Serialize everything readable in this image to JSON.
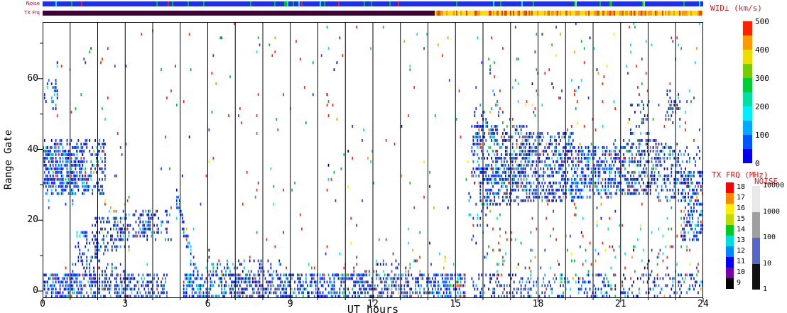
{
  "figure": {
    "strip_labels": {
      "noise": "Noise",
      "txfrq": "TX Frq"
    },
    "axes": {
      "xlabel": "UT hours",
      "ylabel": "Range Gate",
      "xticks": [
        0,
        3,
        6,
        9,
        12,
        15,
        18,
        21,
        24
      ],
      "yticks": [
        0,
        20,
        40,
        60
      ],
      "xlim": [
        0,
        24
      ],
      "ylim": [
        -2,
        76
      ],
      "hour_gridlines": true
    },
    "colorbars": {
      "wid": {
        "title": "WID⊥ (km/s)",
        "tick_values": [
          0,
          100,
          200,
          300,
          400,
          500
        ],
        "max": 500,
        "colors_bottom_to_top": [
          "#0000ee",
          "#0055ff",
          "#00aaff",
          "#00eeff",
          "#00e0a0",
          "#00cc33",
          "#77cc00",
          "#eedd00",
          "#ff9900",
          "#ff2200"
        ]
      },
      "txfrq": {
        "title": "TX FRQ (MHz)",
        "labels_top_to_bottom": [
          "18",
          "17",
          "16",
          "15",
          "14",
          "13",
          "12",
          "11",
          "10",
          "9"
        ],
        "colors_top_to_bottom": [
          "#ff0000",
          "#ff8800",
          "#ffee00",
          "#bbdd00",
          "#00cc22",
          "#00dddd",
          "#0088ff",
          "#0000ff",
          "#7700aa",
          "#000000"
        ]
      },
      "noise": {
        "title": "NOISE",
        "labels_top_to_bottom": [
          "10000",
          "1000",
          "100",
          "10",
          "1"
        ],
        "colors_top_to_bottom": [
          "#e8e8e8",
          "#a0a0a0",
          "#5566cc",
          "#101010"
        ]
      }
    },
    "chart_data": {
      "type": "heatmap",
      "parameter": "Doppler spectral width WID⊥ (km/s), blue = low (< 100), red = high (> 400)",
      "x": {
        "label": "UT hours",
        "range": [
          0,
          24
        ],
        "ticks": [
          0,
          3,
          6,
          9,
          12,
          15,
          18,
          21,
          24
        ]
      },
      "y": {
        "label": "Range Gate",
        "range": [
          -2,
          76
        ],
        "ticks": [
          0,
          20,
          40,
          60
        ]
      },
      "noise_strip": {
        "base_color": "#1f2fee",
        "tick_colors": [
          "#00bb22",
          "#00eedd",
          "#ee2211",
          "#66ff66"
        ],
        "tick_probs": [
          0.045,
          0.014,
          0.012,
          0.008
        ]
      },
      "txfrq_strip": {
        "segments": [
          {
            "t": [
              0,
              14.2
            ],
            "freq_mhz": "10-11",
            "base": "#40003a",
            "mix": []
          },
          {
            "t": [
              14.2,
              24
            ],
            "freq_mhz": "15-16",
            "base": "#ffdd00",
            "mix": [
              [
                "#ff9900",
                0.32
              ],
              [
                "#ff3300",
                0.08
              ],
              [
                "#cc6600",
                0.05
              ],
              [
                "#ffee55",
                0.07
              ]
            ]
          }
        ]
      },
      "background_noise": {
        "density": 0.009
      },
      "noise_columns": [
        {
          "t": 7.8,
          "density": 0.05
        },
        {
          "t": 10.35,
          "density": 0.05
        },
        {
          "t": 13.35,
          "density": 0.04
        },
        {
          "t": 16.25,
          "density": 0.05
        }
      ],
      "main_band": {
        "t": [
          5.05,
          15.3
        ],
        "center_base": 15.5,
        "wave_amp": 1.6,
        "wave_freq": 0.55,
        "rise_after": 12.5,
        "rise_rate": 0.9,
        "halfwidth": 3.1,
        "halfwidth_amp": 1.1,
        "density": 0.62
      },
      "regions": [
        {
          "t": [
            0.0,
            2.3
          ],
          "g": [
            27,
            42
          ],
          "d": 0.38
        },
        {
          "t": [
            0.0,
            1.5
          ],
          "g": [
            29,
            40
          ],
          "d": 0.42
        },
        {
          "t": [
            0.05,
            0.55
          ],
          "g": [
            51,
            59
          ],
          "d": 0.26
        },
        {
          "t": [
            0.7,
            1.15
          ],
          "g": [
            18,
            28
          ],
          "d": 0.12
        },
        {
          "t": [
            1.2,
            2.1
          ],
          "g": [
            8,
            16
          ],
          "d": 0.32
        },
        {
          "t": [
            1.9,
            3.2
          ],
          "g": [
            11,
            20
          ],
          "d": 0.3
        },
        {
          "t": [
            2.4,
            4.7
          ],
          "g": [
            14,
            22
          ],
          "d": 0.25
        },
        {
          "t": [
            3.4,
            4.05
          ],
          "g": [
            16,
            21
          ],
          "d": 0.38
        },
        {
          "t": [
            0.0,
            4.55
          ],
          "g": [
            -2,
            4
          ],
          "d": 0.5
        },
        {
          "t": [
            5.1,
            15.35
          ],
          "g": [
            -2,
            4
          ],
          "d": 0.5
        },
        {
          "t": [
            15.6,
            24.0
          ],
          "g": [
            -2,
            4
          ],
          "d": 0.26
        },
        {
          "t": [
            1.0,
            3.0
          ],
          "g": [
            4,
            7
          ],
          "d": 0.18
        },
        {
          "t": [
            5.9,
            8.7
          ],
          "g": [
            5,
            8
          ],
          "d": 0.26
        },
        {
          "t": [
            11.3,
            13.6
          ],
          "g": [
            4,
            8
          ],
          "d": 0.12
        },
        {
          "type": "diag",
          "t": [
            4.85,
            5.75
          ],
          "g_start": 26,
          "slope": -30,
          "hw": 3,
          "d": 0.5
        },
        {
          "t": [
            15.6,
            17.6
          ],
          "g": [
            30,
            46
          ],
          "d": 0.4
        },
        {
          "t": [
            15.9,
            17.4
          ],
          "g": [
            24,
            34
          ],
          "d": 0.42
        },
        {
          "t": [
            15.7,
            16.6
          ],
          "g": [
            42,
            52
          ],
          "d": 0.18
        },
        {
          "t": [
            17.4,
            19.3
          ],
          "g": [
            25,
            44
          ],
          "d": 0.5
        },
        {
          "t": [
            19.3,
            20.7
          ],
          "g": [
            26,
            40
          ],
          "d": 0.46
        },
        {
          "t": [
            20.7,
            22.3
          ],
          "g": [
            27,
            42
          ],
          "d": 0.46
        },
        {
          "t": [
            22.3,
            23.15
          ],
          "g": [
            25,
            41
          ],
          "d": 0.44
        },
        {
          "t": [
            21.3,
            22.1
          ],
          "g": [
            44,
            52
          ],
          "d": 0.2
        },
        {
          "t": [
            22.6,
            23.2
          ],
          "g": [
            48,
            56
          ],
          "d": 0.24
        },
        {
          "t": [
            23.2,
            24.0
          ],
          "g": [
            14,
            33
          ],
          "d": 0.46
        },
        {
          "t": [
            23.1,
            23.9
          ],
          "g": [
            30,
            40
          ],
          "d": 0.26
        },
        {
          "t": [
            15.4,
            16.2
          ],
          "g": [
            18,
            28
          ],
          "d": 0.13
        },
        {
          "t": [
            15.6,
            24.0
          ],
          "g": [
            4,
            12
          ],
          "d": 0.05,
          "p": "mixed"
        },
        {
          "t": [
            15.6,
            24.0
          ],
          "g": [
            12,
            24
          ],
          "d": 0.025,
          "p": "mixed"
        },
        {
          "t": [
            15.6,
            24.0
          ],
          "g": [
            45,
            72
          ],
          "d": 0.02,
          "p": "mixed"
        },
        {
          "t": [
            9.0,
            15.0
          ],
          "g": [
            5,
            10
          ],
          "d": 0.03,
          "p": "mixed"
        }
      ],
      "palettes": {
        "low": [
          [
            "#0022ee",
            0.5
          ],
          [
            "#0000cc",
            0.14
          ],
          [
            "#2266ff",
            0.12
          ],
          [
            "#00aaff",
            0.1
          ],
          [
            "#00eedd",
            0.05
          ],
          [
            "#00cc44",
            0.04
          ],
          [
            "#ff3300",
            0.03
          ],
          [
            "#ffaa00",
            0.02
          ]
        ],
        "mixed": [
          [
            "#ff2200",
            0.28
          ],
          [
            "#00bb33",
            0.18
          ],
          [
            "#00ddff",
            0.13
          ],
          [
            "#2233ff",
            0.2
          ],
          [
            "#ff9900",
            0.07
          ],
          [
            "#000099",
            0.08
          ],
          [
            "#ffee00",
            0.06
          ]
        ]
      }
    }
  }
}
